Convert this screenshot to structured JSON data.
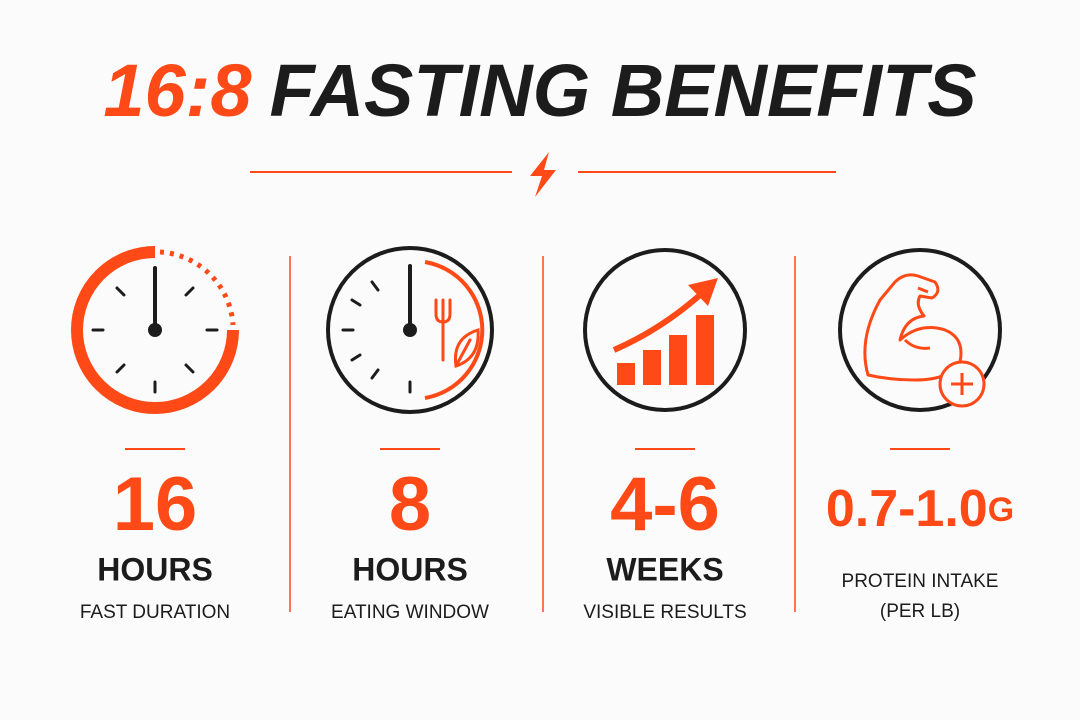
{
  "header": {
    "title_highlight": "16:8",
    "title_rest": "FASTING BENEFITS"
  },
  "items": [
    {
      "value": "16",
      "unit": "HOURS",
      "label": [
        "FAST DURATION"
      ]
    },
    {
      "value": "8",
      "unit": "HOURS",
      "label": [
        "EATING WINDOW"
      ]
    },
    {
      "value": "4-6",
      "unit": "WEEKS",
      "label": [
        "VISIBLE RESULTS"
      ]
    },
    {
      "value": "0.7-1.0",
      "suffix": "G",
      "label": [
        "PROTEIN INTAKE",
        "(PER LB)"
      ]
    }
  ]
}
